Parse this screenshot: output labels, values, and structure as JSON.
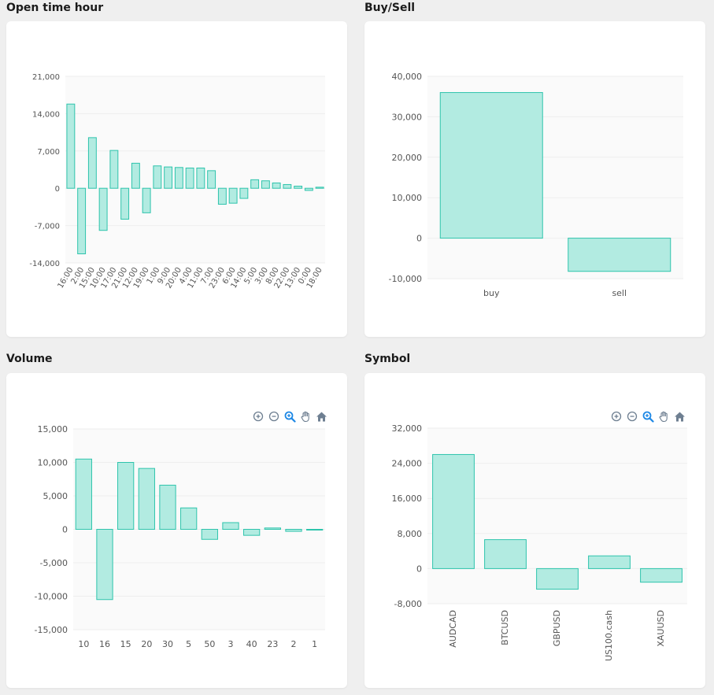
{
  "theme": {
    "bar_fill": "#b2ebe1",
    "bar_stroke": "#2ec4ac",
    "grid": "#eeeeee",
    "plot_bg": "#fafafa",
    "axis_text": "#555555",
    "icon_color": "#6e7f91",
    "icon_active": "#1e88e5"
  },
  "panels": {
    "open_time_hour": {
      "title": "Open time hour"
    },
    "buy_sell": {
      "title": "Buy/Sell"
    },
    "volume": {
      "title": "Volume"
    },
    "symbol": {
      "title": "Symbol"
    }
  },
  "toolbar_icons": [
    "zoom-in-icon",
    "zoom-out-icon",
    "zoom-selection-icon",
    "pan-hand-icon",
    "home-reset-icon"
  ],
  "chart_data": [
    {
      "id": "open_time_hour",
      "type": "bar",
      "title": "Open time hour",
      "categories": [
        "16:00",
        "2:00",
        "15:00",
        "10:00",
        "17:00",
        "21:00",
        "12:00",
        "19:00",
        "1:00",
        "9:00",
        "20:00",
        "4:00",
        "11:00",
        "7:00",
        "23:00",
        "6:00",
        "14:00",
        "5:00",
        "3:00",
        "8:00",
        "22:00",
        "13:00",
        "0:00",
        "18:00"
      ],
      "values": [
        15800,
        -12300,
        9500,
        -7900,
        7100,
        -5800,
        4700,
        -4600,
        4200,
        4000,
        3900,
        3800,
        3800,
        3300,
        -3000,
        -2800,
        -1900,
        1600,
        1400,
        1000,
        700,
        400,
        -400,
        200
      ],
      "ylim": [
        -14000,
        21000
      ],
      "yticks": [
        21000,
        14000,
        7000,
        0,
        -7000,
        -14000
      ],
      "ytick_labels": [
        "21,000",
        "14,000",
        "7,000",
        "0",
        "-7,000",
        "-14,000"
      ],
      "xlabel_rotation": -60,
      "toolbar": false
    },
    {
      "id": "buy_sell",
      "type": "bar",
      "title": "Buy/Sell",
      "categories": [
        "buy",
        "sell"
      ],
      "values": [
        36000,
        -8200
      ],
      "ylim": [
        -10000,
        40000
      ],
      "yticks": [
        40000,
        30000,
        20000,
        10000,
        0,
        -10000
      ],
      "ytick_labels": [
        "40,000",
        "30,000",
        "20,000",
        "10,000",
        "0",
        "-10,000"
      ],
      "xlabel_rotation": 0,
      "toolbar": false
    },
    {
      "id": "volume",
      "type": "bar",
      "title": "Volume",
      "categories": [
        "10",
        "16",
        "15",
        "20",
        "30",
        "5",
        "50",
        "3",
        "40",
        "23",
        "2",
        "1"
      ],
      "values": [
        10500,
        -10500,
        10000,
        9100,
        6600,
        3200,
        -1500,
        1000,
        -900,
        200,
        -300,
        -100
      ],
      "ylim": [
        -15000,
        15000
      ],
      "yticks": [
        15000,
        10000,
        5000,
        0,
        -5000,
        -10000,
        -15000
      ],
      "ytick_labels": [
        "15,000",
        "10,000",
        "5,000",
        "0",
        "-5,000",
        "-10,000",
        "-15,000"
      ],
      "xlabel_rotation": 0,
      "toolbar": true
    },
    {
      "id": "symbol",
      "type": "bar",
      "title": "Symbol",
      "categories": [
        "AUDCAD",
        "BTCUSD",
        "GBPUSD",
        "US100.cash",
        "XAUUSD"
      ],
      "values": [
        26000,
        6600,
        -4700,
        2900,
        -3100
      ],
      "ylim": [
        -8000,
        32000
      ],
      "yticks": [
        32000,
        24000,
        16000,
        8000,
        0,
        -8000
      ],
      "ytick_labels": [
        "32,000",
        "24,000",
        "16,000",
        "8,000",
        "0",
        "-8,000"
      ],
      "xlabel_rotation": -90,
      "toolbar": true
    }
  ]
}
